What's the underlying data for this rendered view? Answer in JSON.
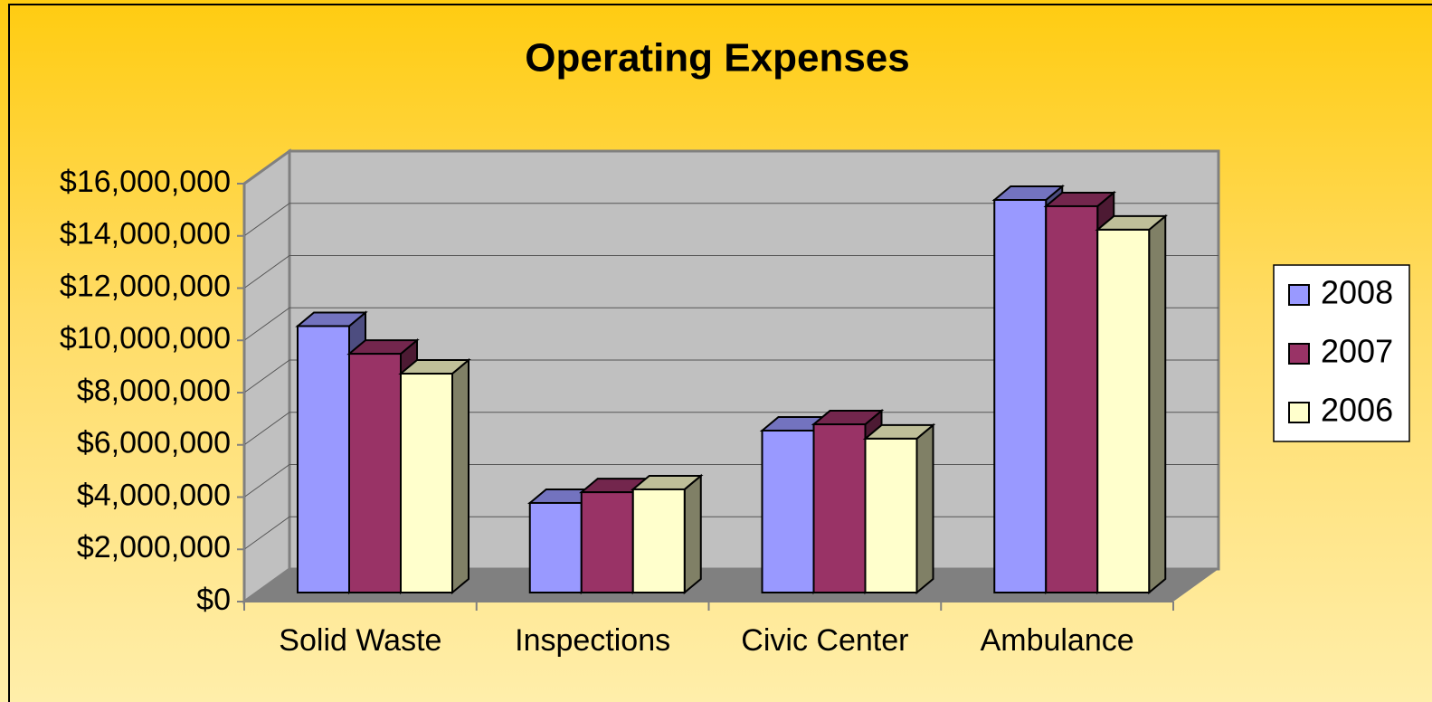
{
  "chart_data": {
    "type": "bar3d",
    "title": "Operating Expenses",
    "categories": [
      "Solid Waste",
      "Inspections",
      "Civic Center",
      "Ambulance"
    ],
    "series": [
      {
        "name": "2008",
        "color": "#9999ff",
        "values": [
          10200000,
          3430000,
          6200000,
          15030000
        ]
      },
      {
        "name": "2007",
        "color": "#993366",
        "values": [
          9140000,
          3840000,
          6440000,
          14790000
        ]
      },
      {
        "name": "2006",
        "color": "#ffffcc",
        "values": [
          8380000,
          3950000,
          5890000,
          13890000
        ]
      }
    ],
    "ylim": [
      0,
      16000000
    ],
    "yticks": [
      {
        "value": 0,
        "label": "$0"
      },
      {
        "value": 2000000,
        "label": "$2,000,000"
      },
      {
        "value": 4000000,
        "label": "$4,000,000"
      },
      {
        "value": 6000000,
        "label": "$6,000,000"
      },
      {
        "value": 8000000,
        "label": "$8,000,000"
      },
      {
        "value": 10000000,
        "label": "$10,000,000"
      },
      {
        "value": 12000000,
        "label": "$12,000,000"
      },
      {
        "value": 14000000,
        "label": "$14,000,000"
      },
      {
        "value": 16000000,
        "label": "$16,000,000"
      }
    ],
    "grid": true,
    "legend": "right"
  }
}
